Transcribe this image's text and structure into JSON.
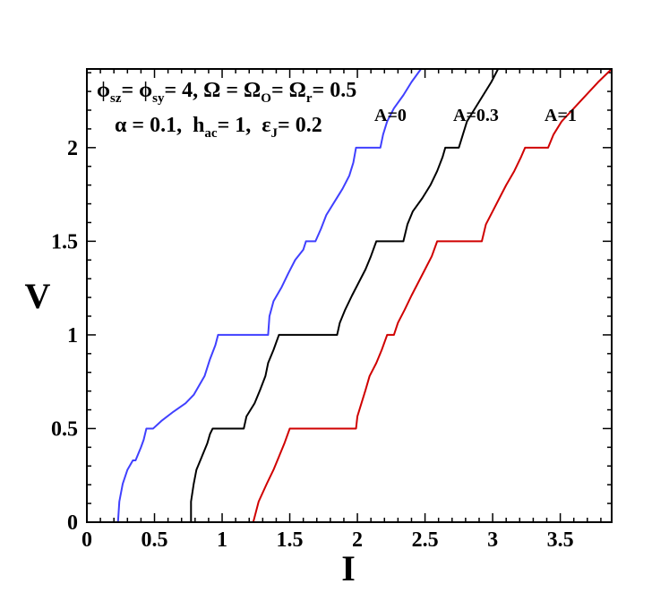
{
  "chart_data": {
    "type": "line",
    "title": "",
    "xlabel": "I",
    "ylabel": "V",
    "xlim": [
      0,
      3.88
    ],
    "ylim": [
      0,
      2.42
    ],
    "xticks": [
      0,
      0.5,
      1,
      1.5,
      2,
      2.5,
      3,
      3.5
    ],
    "xtick_labels": [
      "0",
      "0.5",
      "1",
      "1.5",
      "2",
      "2.5",
      "3",
      "3.5"
    ],
    "yticks": [
      0,
      0.5,
      1,
      1.5,
      2
    ],
    "ytick_labels": [
      "0",
      "0.5",
      "1",
      "1.5",
      "2"
    ],
    "minor_ticks": true,
    "grid": false,
    "annotations": {
      "params_line1": [
        "ϕ",
        "sz",
        "= ϕ",
        "sy",
        "= 4, Ω = Ω",
        "O",
        "= Ω",
        "r",
        "= 0.5"
      ],
      "params_line2": [
        "α = 0.1,  h",
        "ac",
        "= 1,  ε",
        "J",
        "= 0.2"
      ]
    },
    "series": [
      {
        "name": "A=0",
        "color": "#4040ff",
        "x": [
          0.23,
          0.24,
          0.265,
          0.3,
          0.34,
          0.36,
          0.4,
          0.42,
          0.44,
          0.49,
          0.55,
          0.64,
          0.73,
          0.79,
          0.87,
          0.91,
          0.95,
          0.97,
          1.34,
          1.35,
          1.38,
          1.44,
          1.49,
          1.54,
          1.6,
          1.62,
          1.69,
          1.73,
          1.77,
          1.83,
          1.89,
          1.94,
          1.97,
          1.99,
          2.17,
          2.19,
          2.22,
          2.27,
          2.34,
          2.4,
          2.47
        ],
        "y": [
          0,
          0.11,
          0.205,
          0.28,
          0.33,
          0.33,
          0.4,
          0.44,
          0.5,
          0.5,
          0.54,
          0.59,
          0.635,
          0.68,
          0.78,
          0.87,
          0.945,
          1.0,
          1.0,
          1.1,
          1.18,
          1.255,
          1.33,
          1.4,
          1.455,
          1.5,
          1.5,
          1.565,
          1.64,
          1.71,
          1.78,
          1.85,
          1.92,
          2.0,
          2.0,
          2.07,
          2.14,
          2.21,
          2.28,
          2.35,
          2.42
        ]
      },
      {
        "name": "A=0.3",
        "color": "#000000",
        "x": [
          0.77,
          0.77,
          0.79,
          0.81,
          0.85,
          0.89,
          0.91,
          0.93,
          1.16,
          1.18,
          1.24,
          1.28,
          1.32,
          1.34,
          1.38,
          1.42,
          1.85,
          1.87,
          1.91,
          1.96,
          2.01,
          2.06,
          2.1,
          2.14,
          2.34,
          2.37,
          2.41,
          2.48,
          2.54,
          2.59,
          2.63,
          2.65,
          2.75,
          2.78,
          2.81,
          2.87,
          2.93,
          2.99,
          3.04
        ],
        "y": [
          0,
          0.11,
          0.205,
          0.28,
          0.35,
          0.42,
          0.47,
          0.5,
          0.5,
          0.565,
          0.635,
          0.705,
          0.78,
          0.85,
          0.92,
          1.0,
          1.0,
          1.065,
          1.135,
          1.21,
          1.28,
          1.35,
          1.42,
          1.5,
          1.5,
          1.59,
          1.66,
          1.73,
          1.8,
          1.875,
          1.95,
          2.0,
          2.0,
          2.07,
          2.14,
          2.21,
          2.28,
          2.35,
          2.42
        ]
      },
      {
        "name": "A=1",
        "color": "#d00000",
        "x": [
          1.23,
          1.27,
          1.33,
          1.38,
          1.42,
          1.46,
          1.5,
          1.99,
          2.0,
          2.03,
          2.06,
          2.09,
          2.14,
          2.18,
          2.22,
          2.27,
          2.3,
          2.35,
          2.4,
          2.45,
          2.5,
          2.55,
          2.59,
          2.92,
          2.95,
          3.0,
          3.05,
          3.1,
          3.16,
          3.21,
          3.24,
          3.41,
          3.45,
          3.51,
          3.6,
          3.69,
          3.78,
          3.88
        ],
        "y": [
          0,
          0.11,
          0.205,
          0.28,
          0.35,
          0.42,
          0.5,
          0.5,
          0.565,
          0.635,
          0.705,
          0.78,
          0.85,
          0.92,
          1.0,
          1.0,
          1.065,
          1.135,
          1.21,
          1.28,
          1.35,
          1.42,
          1.5,
          1.5,
          1.59,
          1.66,
          1.73,
          1.8,
          1.875,
          1.95,
          2.0,
          2.0,
          2.07,
          2.14,
          2.21,
          2.28,
          2.35,
          2.42
        ]
      }
    ]
  }
}
